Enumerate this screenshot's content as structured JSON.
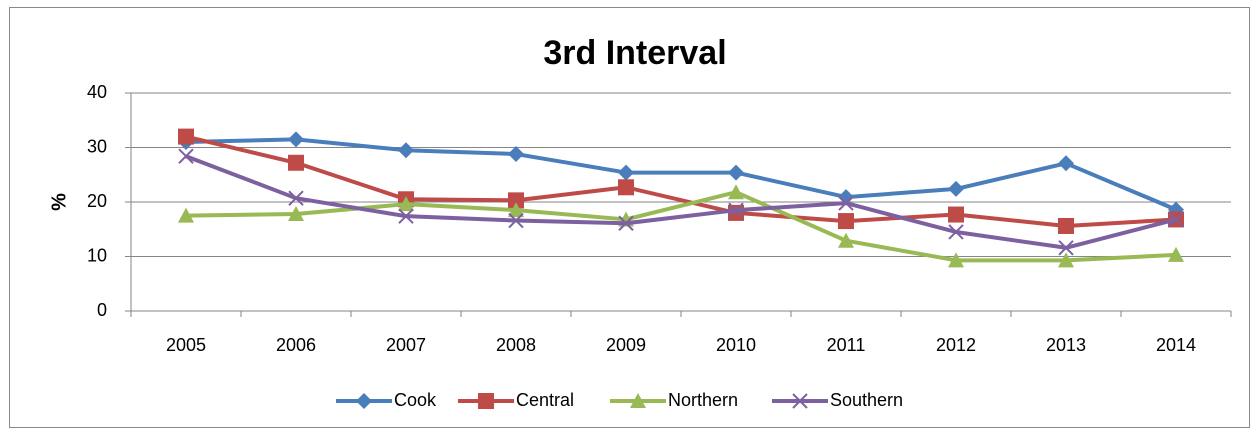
{
  "chart_data": {
    "type": "line",
    "title": "3rd Interval",
    "y_label": "%",
    "categories": [
      "2005",
      "2006",
      "2007",
      "2008",
      "2009",
      "2010",
      "2011",
      "2012",
      "2013",
      "2014"
    ],
    "series": [
      {
        "name": "Cook",
        "color": "#4a7ebb",
        "marker": "diamond",
        "values": [
          31.0,
          31.5,
          29.5,
          28.8,
          25.4,
          25.4,
          20.9,
          22.4,
          27.1,
          18.6
        ]
      },
      {
        "name": "Central",
        "color": "#be4b48",
        "marker": "square",
        "values": [
          32.0,
          27.2,
          20.5,
          20.3,
          22.7,
          18.0,
          16.5,
          17.7,
          15.6,
          16.8
        ]
      },
      {
        "name": "Northern",
        "color": "#98b954",
        "marker": "triangle",
        "values": [
          17.5,
          17.8,
          19.6,
          18.5,
          16.8,
          21.8,
          12.9,
          9.3,
          9.3,
          10.3
        ]
      },
      {
        "name": "Southern",
        "color": "#7d60a0",
        "marker": "x",
        "values": [
          28.4,
          20.7,
          17.4,
          16.6,
          16.1,
          18.5,
          19.8,
          14.5,
          11.6,
          16.8
        ]
      }
    ],
    "ylim": [
      0,
      40
    ],
    "yticks": [
      0,
      10,
      20,
      30,
      40
    ],
    "grid": true,
    "legend": "bottom"
  }
}
